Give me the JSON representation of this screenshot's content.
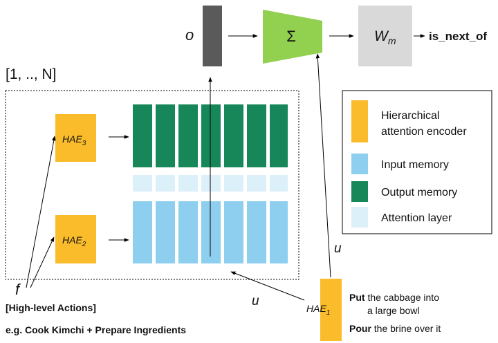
{
  "top": {
    "o_label": "o",
    "sum_symbol": "Σ",
    "wm_base": "W",
    "wm_sub": "m",
    "output_label": "is_next_of"
  },
  "range_label": "[1, .., N]",
  "hae3": {
    "base": "HAE",
    "sub": "3"
  },
  "hae2": {
    "base": "HAE",
    "sub": "2"
  },
  "hae1": {
    "base": "HAE",
    "sub": "1"
  },
  "f_label": "f",
  "u_label_vertical": "u",
  "u_label_diag": "u",
  "high_level": {
    "title": "[High-level Actions]",
    "example": "e.g. Cook Kimchi + Prepare Ingredients"
  },
  "instructions": [
    {
      "bold": "Put",
      "rest": " the cabbage into",
      "line2": "a large bowl"
    },
    {
      "bold": "Pour",
      "rest": " the brine over it"
    }
  ],
  "legend": [
    {
      "label_lines": [
        "Hierarchical",
        "attention encoder"
      ],
      "color": "#FBBC2C"
    },
    {
      "label_lines": [
        "Input memory"
      ],
      "color": "#8ECFF0"
    },
    {
      "label_lines": [
        "Output memory"
      ],
      "color": "#17875A"
    },
    {
      "label_lines": [
        "Attention layer"
      ],
      "color": "#DCF0F9"
    }
  ],
  "colors": {
    "encoder": "#FBBC2C",
    "input_memory": "#8ECFF0",
    "output_memory": "#17875A",
    "attention": "#DCF0F9",
    "o_bar": "#5A5A5A",
    "sum": "#92D050",
    "wm": "#D9D9D9"
  }
}
